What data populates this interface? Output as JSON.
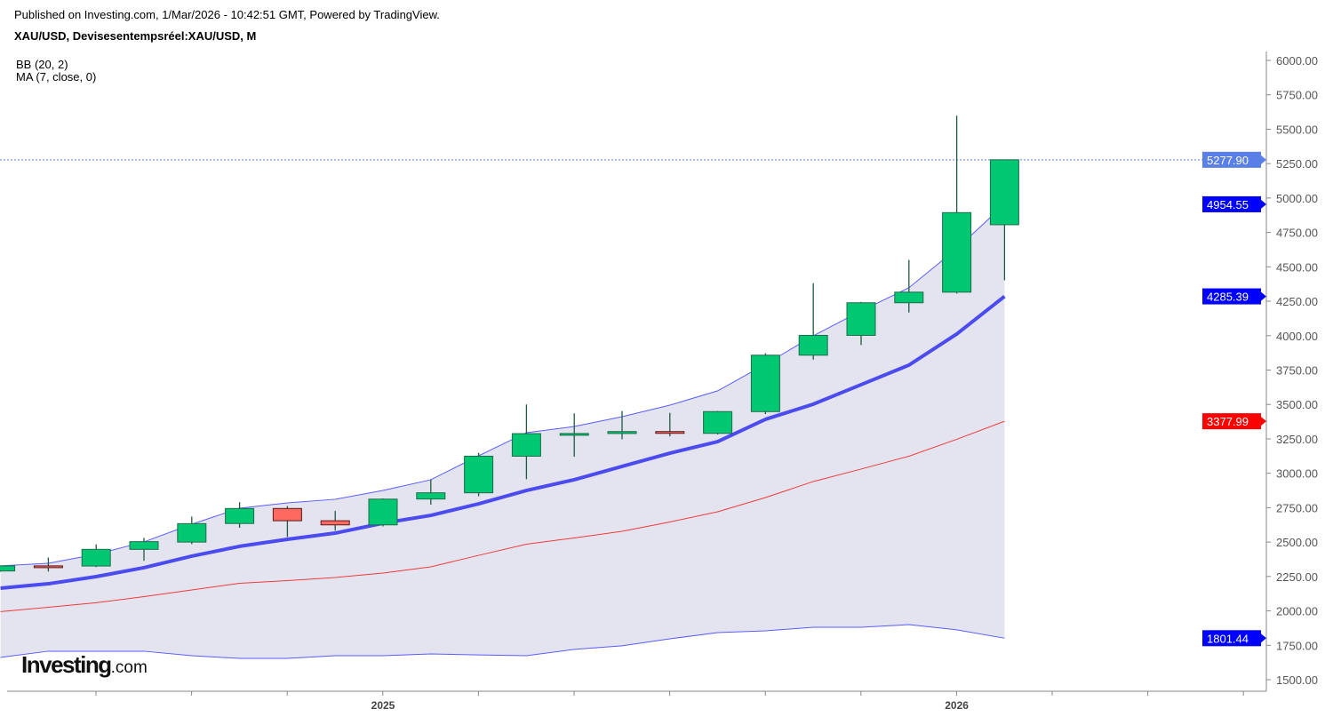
{
  "header": {
    "published": "Published on Investing.com, 1/Mar/2026 - 10:42:51 GMT, Powered by TradingView.",
    "symbol": "XAU/USD, Devisesentempsréel:XAU/USD, M"
  },
  "indicators": [
    "BB (20, 2)",
    "MA (7, close, 0)"
  ],
  "logo": {
    "name": "Investing",
    "suffix": ".com"
  },
  "colors": {
    "up": "#00c872",
    "down": "#ff6960",
    "bb_band": "#5b5bff",
    "bb_basis": "#f03a3a",
    "ma": "#4b4bf0",
    "fill": "#e4e4f0",
    "last_price": "#5a7fe6",
    "label_blue": "#0000ff",
    "label_red": "#ff0000"
  },
  "chart_data": {
    "type": "candlestick",
    "title": "XAU/USD, Devisesentempsréel:XAU/USD, M",
    "x": [
      "2024-05",
      "2024-06",
      "2024-07",
      "2024-08",
      "2024-09",
      "2024-10",
      "2024-11",
      "2024-12",
      "2025-01",
      "2025-02",
      "2025-03",
      "2025-04",
      "2025-05",
      "2025-06",
      "2025-07",
      "2025-08",
      "2025-09",
      "2025-10",
      "2025-11",
      "2025-12",
      "2026-01",
      "2026-02"
    ],
    "open": [
      2290,
      2327,
      2326,
      2447,
      2500,
      2635,
      2744,
      2655,
      2625,
      2813,
      2858,
      3124,
      3288,
      3289,
      3303,
      3290,
      3448,
      3858,
      4002,
      4239,
      4316,
      4806
    ],
    "high": [
      2330,
      2388,
      2483,
      2531,
      2685,
      2790,
      2762,
      2726,
      2817,
      2956,
      3148,
      3500,
      3435,
      3452,
      3439,
      3453,
      3872,
      4381,
      4245,
      4550,
      5598,
      5278
    ],
    "low": [
      2285,
      2286,
      2318,
      2364,
      2485,
      2604,
      2537,
      2583,
      2614,
      2772,
      2833,
      2957,
      3120,
      3247,
      3268,
      3282,
      3430,
      3826,
      3932,
      4168,
      4306,
      4402
    ],
    "close": [
      2327,
      2326,
      2447,
      2503,
      2634,
      2744,
      2655,
      2625,
      2812,
      2858,
      3124,
      3288,
      3289,
      3303,
      3290,
      3448,
      3858,
      4002,
      4239,
      4316,
      4894,
      5277.9
    ],
    "bb_upper": [
      2327,
      2346,
      2411,
      2501,
      2630,
      2746,
      2785,
      2811,
      2875,
      2953,
      3127,
      3295,
      3340,
      3411,
      3495,
      3599,
      3792,
      3999,
      4180,
      4348,
      4632,
      4954.55
    ],
    "bb_lower": [
      1662,
      1707,
      1707,
      1707,
      1674,
      1655,
      1655,
      1674,
      1674,
      1687,
      1680,
      1674,
      1720,
      1746,
      1797,
      1842,
      1855,
      1881,
      1881,
      1900,
      1862,
      1801.44
    ],
    "ma7": [
      2165,
      2197,
      2249,
      2314,
      2398,
      2469,
      2520,
      2565,
      2637,
      2694,
      2778,
      2875,
      2953,
      3050,
      3146,
      3230,
      3392,
      3502,
      3644,
      3786,
      4012,
      4285.39
    ],
    "ylim": [
      1500,
      6000
    ],
    "yticks": [
      "1500.00",
      "1750.00",
      "2000.00",
      "2250.00",
      "2500.00",
      "2750.00",
      "3000.00",
      "3250.00",
      "3500.00",
      "3750.00",
      "4000.00",
      "4250.00",
      "4500.00",
      "4750.00",
      "5000.00",
      "5250.00",
      "5500.00",
      "5750.00",
      "6000.00"
    ],
    "xtick_labels": [
      {
        "month": "2025-01",
        "label": "2025"
      },
      {
        "month": "2026-01",
        "label": "2026"
      }
    ],
    "price_labels": [
      {
        "value": 5277.9,
        "text": "5277.90",
        "kind": "last"
      },
      {
        "value": 4954.55,
        "text": "4954.55",
        "kind": "bb_upper"
      },
      {
        "value": 4285.39,
        "text": "4285.39",
        "kind": "ma"
      },
      {
        "value": 3377.99,
        "text": "3377.99",
        "kind": "bb_basis"
      },
      {
        "value": 1801.44,
        "text": "1801.44",
        "kind": "bb_lower"
      }
    ]
  }
}
